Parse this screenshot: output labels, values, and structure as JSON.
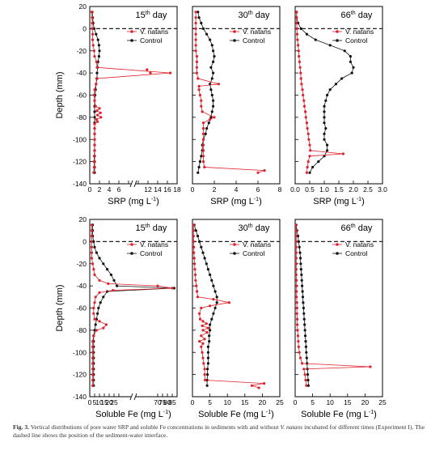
{
  "figure": {
    "y_axis_label": "Depth (mm)",
    "x_unit_suffix": "(mg L",
    "series_names": {
      "treat": "V. natans",
      "ctrl": "Control"
    },
    "colors": {
      "treat": "#e0202a",
      "ctrl": "#111111",
      "dashed": "#222222"
    }
  },
  "caption": {
    "fig_label": "Fig. 3.",
    "text_before": "Vertical distributions of pore water SRP and soluble Fe concentrations in sediments with and without",
    "species": "V. natans",
    "text_after": "incubated for different times (Experiment I). The dashed line shows the position of the sediment-water interface."
  },
  "chart_data": [
    {
      "type": "line",
      "title_num": "15",
      "title_sup": "th",
      "title_tail": " day",
      "xlabel": "SRP",
      "xlim": [
        0,
        18
      ],
      "ylim": [
        -140,
        20
      ],
      "break_at": 9,
      "xticks": [
        "0",
        "2",
        "4",
        "6",
        "",
        "",
        "12",
        "14",
        "16",
        "18"
      ],
      "xtick_values": [
        0,
        2,
        4,
        6,
        8,
        10,
        12,
        14,
        16,
        18
      ],
      "yticks": [
        "20",
        "0",
        "-20",
        "-40",
        "-60",
        "-80",
        "-100",
        "-120",
        "-140"
      ],
      "series": [
        {
          "name": "V. natans",
          "depth": [
            15,
            10,
            5,
            0,
            -5,
            -10,
            -15,
            -20,
            -25,
            -30,
            -35,
            -40,
            -45,
            -50,
            -55,
            -60,
            -65,
            -70,
            -72,
            -74,
            -76,
            -78,
            -80,
            -82,
            -84,
            -86,
            -90,
            -95,
            -100,
            -105,
            -110,
            -115,
            -120,
            -125,
            -130
          ],
          "values": [
            0.4,
            0.5,
            0.5,
            0.5,
            0.6,
            0.6,
            0.7,
            0.9,
            1.0,
            1.4,
            1.5,
            16.6,
            1.4,
            1.3,
            1.0,
            0.9,
            1.0,
            1.2,
            2.0,
            1.5,
            2.2,
            1.6,
            2.3,
            1.4,
            1.6,
            1.0,
            1.0,
            1.0,
            1.0,
            1.0,
            1.0,
            0.9,
            0.9,
            0.9,
            0.8
          ]
        },
        {
          "name": "Control",
          "depth": [
            15,
            10,
            5,
            0,
            -5,
            -10,
            -15,
            -20,
            -25,
            -30,
            -35,
            -40,
            -45,
            -50,
            -55,
            -60,
            -65,
            -70,
            -75,
            -80,
            -85,
            -90,
            -95,
            -100,
            -105,
            -110,
            -115,
            -120,
            -125,
            -130
          ],
          "values": [
            0.5,
            0.6,
            0.7,
            0.9,
            1.3,
            1.7,
            1.9,
            2.0,
            1.9,
            1.7,
            1.6,
            1.5,
            1.5,
            1.3,
            1.2,
            1.1,
            1.0,
            1.0,
            1.0,
            1.0,
            1.0,
            1.0,
            1.0,
            1.0,
            1.0,
            1.0,
            1.0,
            1.0,
            1.0,
            1.0
          ]
        }
      ],
      "extra_points": [
        [
          11.8,
          -37
        ],
        [
          12.5,
          -40
        ]
      ]
    },
    {
      "type": "line",
      "title_num": "30",
      "title_sup": "th",
      "title_tail": " day",
      "xlabel": "SRP",
      "xlim": [
        0,
        8
      ],
      "ylim": [
        -140,
        20
      ],
      "xticks": [
        "0",
        "2",
        "4",
        "6",
        "8"
      ],
      "xtick_values": [
        0,
        2,
        4,
        6,
        8
      ],
      "series": [
        {
          "name": "V. natans",
          "depth": [
            15,
            10,
            5,
            0,
            -5,
            -10,
            -15,
            -20,
            -25,
            -30,
            -35,
            -40,
            -45,
            -50,
            -52,
            -55,
            -60,
            -65,
            -70,
            -75,
            -80,
            -82,
            -85,
            -90,
            -95,
            -100,
            -105,
            -110,
            -115,
            -120,
            -125,
            -128,
            -130
          ],
          "values": [
            0.3,
            0.3,
            0.3,
            0.3,
            0.3,
            0.3,
            0.3,
            0.3,
            0.4,
            0.4,
            0.4,
            0.4,
            0.5,
            2.4,
            0.6,
            0.6,
            0.7,
            0.8,
            0.8,
            0.9,
            2.0,
            1.6,
            1.0,
            1.0,
            1.0,
            1.0,
            1.0,
            1.0,
            1.0,
            1.0,
            1.1,
            6.6,
            6.0
          ]
        },
        {
          "name": "Control",
          "depth": [
            15,
            10,
            5,
            0,
            -5,
            -10,
            -15,
            -20,
            -25,
            -30,
            -35,
            -40,
            -45,
            -50,
            -55,
            -60,
            -65,
            -70,
            -75,
            -80,
            -85,
            -90,
            -95,
            -100,
            -105,
            -110,
            -115,
            -120,
            -125,
            -130
          ],
          "values": [
            0.5,
            0.6,
            0.8,
            1.0,
            1.3,
            1.6,
            1.8,
            1.9,
            2.0,
            1.9,
            1.7,
            1.9,
            1.8,
            1.6,
            1.7,
            1.8,
            1.9,
            1.9,
            1.8,
            1.7,
            1.5,
            1.3,
            1.2,
            1.0,
            0.9,
            0.9,
            0.8,
            0.7,
            0.6,
            0.5
          ]
        }
      ]
    },
    {
      "type": "line",
      "title_num": "66",
      "title_sup": "th",
      "title_tail": " day",
      "xlabel": "SRP",
      "xlim": [
        0,
        3
      ],
      "ylim": [
        -140,
        20
      ],
      "xticks": [
        "0.0",
        "0.5",
        "1.0",
        "1.5",
        "2.0",
        "2.5",
        "3.0"
      ],
      "xtick_values": [
        0,
        0.5,
        1,
        1.5,
        2,
        2.5,
        3
      ],
      "series": [
        {
          "name": "V. natans",
          "depth": [
            15,
            10,
            5,
            0,
            -5,
            -10,
            -15,
            -20,
            -25,
            -30,
            -35,
            -40,
            -45,
            -50,
            -55,
            -60,
            -65,
            -70,
            -75,
            -80,
            -85,
            -90,
            -95,
            -100,
            -105,
            -110,
            -113,
            -115,
            -120,
            -125,
            -130
          ],
          "values": [
            0.05,
            0.05,
            0.05,
            0.06,
            0.07,
            0.08,
            0.1,
            0.12,
            0.13,
            0.15,
            0.17,
            0.19,
            0.2,
            0.22,
            0.25,
            0.27,
            0.3,
            0.32,
            0.35,
            0.37,
            0.4,
            0.42,
            0.45,
            0.47,
            0.5,
            0.52,
            1.65,
            0.5,
            0.45,
            0.42,
            0.4
          ]
        },
        {
          "name": "Control",
          "depth": [
            15,
            10,
            5,
            0,
            -5,
            -10,
            -15,
            -20,
            -25,
            -30,
            -35,
            -40,
            -45,
            -50,
            -55,
            -60,
            -65,
            -70,
            -75,
            -80,
            -85,
            -90,
            -95,
            -100,
            -105,
            -110,
            -115,
            -120,
            -125,
            -130
          ],
          "values": [
            0.05,
            0.05,
            0.1,
            0.2,
            0.4,
            0.7,
            1.2,
            1.7,
            1.9,
            1.9,
            2.0,
            1.95,
            1.6,
            1.4,
            1.2,
            1.1,
            1.05,
            1.0,
            1.0,
            1.0,
            1.0,
            1.05,
            1.0,
            1.0,
            1.1,
            1.1,
            1.0,
            0.8,
            0.6,
            0.5
          ]
        }
      ]
    },
    {
      "type": "line",
      "title_num": "15",
      "title_sup": "th",
      "title_tail": " day",
      "xlabel": "Soluble Fe",
      "xlim": [
        0,
        90
      ],
      "ylim": [
        -140,
        20
      ],
      "break_at": 45,
      "xticks": [
        "0",
        "5",
        "10",
        "15",
        "20",
        "25",
        "",
        "70",
        "75",
        "80",
        "85"
      ],
      "xtick_values": [
        0,
        5,
        10,
        15,
        20,
        25,
        30,
        70,
        75,
        80,
        85
      ],
      "yticks": [
        "20",
        "0",
        "-20",
        "-40",
        "-60",
        "-80",
        "-100",
        "-120",
        "-140"
      ],
      "series": [
        {
          "name": "V. natans",
          "depth": [
            15,
            10,
            5,
            0,
            -5,
            -10,
            -15,
            -20,
            -25,
            -30,
            -35,
            -38,
            -40,
            -42,
            -44,
            -46,
            -50,
            -55,
            -60,
            -65,
            -70,
            -72,
            -75,
            -78,
            -80,
            -85,
            -90,
            -95,
            -100,
            -105,
            -110,
            -115,
            -120,
            -125,
            -130
          ],
          "values": [
            2,
            2,
            2,
            2,
            2,
            2,
            2,
            3,
            4,
            5,
            10,
            19,
            70,
            85,
            24,
            10,
            6,
            5,
            4,
            4,
            5,
            10,
            17,
            14,
            7,
            4,
            3,
            3,
            3,
            3,
            3,
            3,
            3,
            3,
            3
          ]
        },
        {
          "name": "Control",
          "depth": [
            15,
            10,
            5,
            0,
            -5,
            -10,
            -15,
            -20,
            -25,
            -30,
            -35,
            -40,
            -42,
            -45,
            -50,
            -55,
            -60,
            -65,
            -70,
            -75,
            -80,
            -85,
            -90,
            -95,
            -100,
            -105,
            -110,
            -115,
            -120,
            -125,
            -130
          ],
          "values": [
            3,
            3,
            3,
            4,
            5,
            7,
            10,
            14,
            18,
            22,
            25,
            28,
            87,
            18,
            14,
            11,
            9,
            8,
            7,
            6,
            5,
            4,
            4,
            4,
            4,
            4,
            4,
            4,
            4,
            4,
            4
          ]
        }
      ]
    },
    {
      "type": "line",
      "title_num": "30",
      "title_sup": "th",
      "title_tail": " day",
      "xlabel": "Soluble Fe",
      "xlim": [
        0,
        25
      ],
      "ylim": [
        -140,
        20
      ],
      "xticks": [
        "0",
        "5",
        "10",
        "15",
        "20",
        "25"
      ],
      "xtick_values": [
        0,
        5,
        10,
        15,
        20,
        25
      ],
      "series": [
        {
          "name": "V. natans",
          "depth": [
            15,
            10,
            5,
            0,
            -5,
            -10,
            -15,
            -20,
            -25,
            -30,
            -35,
            -40,
            -45,
            -50,
            -52,
            -55,
            -58,
            -60,
            -65,
            -70,
            -72,
            -74,
            -76,
            -78,
            -80,
            -82,
            -85,
            -88,
            -90,
            -92,
            -95,
            -100,
            -105,
            -110,
            -115,
            -120,
            -125,
            -128,
            -130,
            -132
          ],
          "values": [
            0.3,
            0.3,
            0.3,
            0.3,
            0.4,
            0.4,
            0.5,
            0.6,
            0.7,
            0.8,
            0.9,
            1.1,
            1.3,
            1.5,
            6.0,
            10.5,
            5.0,
            2.5,
            2.0,
            2.2,
            3.0,
            4.0,
            2.8,
            4.5,
            3.0,
            4.2,
            2.5,
            3.5,
            2.0,
            3.0,
            2.5,
            2.8,
            3.0,
            3.2,
            3.5,
            3.5,
            3.6,
            20.5,
            17.0,
            19.0
          ]
        },
        {
          "name": "Control",
          "depth": [
            15,
            10,
            5,
            0,
            -5,
            -10,
            -15,
            -20,
            -25,
            -30,
            -35,
            -40,
            -45,
            -50,
            -55,
            -60,
            -65,
            -70,
            -75,
            -80,
            -85,
            -90,
            -95,
            -100,
            -105,
            -110,
            -115,
            -120,
            -125,
            -130
          ],
          "values": [
            0.5,
            1.0,
            1.5,
            2.0,
            2.5,
            3.0,
            3.5,
            4.0,
            4.5,
            5.0,
            5.5,
            6.0,
            6.5,
            7.0,
            7.0,
            6.5,
            6.0,
            5.5,
            5.0,
            5.0,
            4.8,
            4.8,
            4.5,
            4.5,
            4.5,
            4.5,
            4.3,
            4.3,
            4.2,
            4.2
          ]
        }
      ]
    },
    {
      "type": "line",
      "title_num": "66",
      "title_sup": "th",
      "title_tail": " day",
      "xlabel": "Soluble Fe",
      "xlim": [
        0,
        25
      ],
      "ylim": [
        -140,
        20
      ],
      "xticks": [
        "0",
        "5",
        "10",
        "15",
        "20",
        "25"
      ],
      "xtick_values": [
        0,
        5,
        10,
        15,
        20,
        25
      ],
      "series": [
        {
          "name": "V. natans",
          "depth": [
            15,
            10,
            5,
            0,
            -5,
            -10,
            -15,
            -20,
            -25,
            -30,
            -35,
            -40,
            -45,
            -50,
            -55,
            -60,
            -65,
            -70,
            -75,
            -80,
            -85,
            -90,
            -95,
            -100,
            -105,
            -110,
            -113,
            -115,
            -120,
            -125,
            -130
          ],
          "values": [
            0.3,
            0.3,
            0.3,
            0.3,
            0.3,
            0.3,
            0.3,
            0.3,
            0.3,
            0.3,
            0.4,
            0.4,
            0.4,
            0.4,
            0.5,
            0.5,
            0.5,
            0.6,
            0.6,
            0.7,
            0.8,
            0.9,
            1.0,
            1.2,
            1.5,
            2.0,
            21.5,
            2.5,
            2.8,
            3.0,
            3.2
          ]
        },
        {
          "name": "Control",
          "depth": [
            15,
            10,
            5,
            0,
            -5,
            -10,
            -15,
            -20,
            -25,
            -30,
            -35,
            -40,
            -45,
            -50,
            -55,
            -60,
            -65,
            -70,
            -75,
            -80,
            -85,
            -90,
            -95,
            -100,
            -105,
            -110,
            -115,
            -120,
            -125,
            -130
          ],
          "values": [
            0.3,
            0.5,
            0.8,
            1.0,
            1.2,
            1.4,
            1.5,
            1.6,
            1.7,
            1.8,
            1.9,
            2.0,
            2.1,
            2.2,
            2.3,
            2.4,
            2.5,
            2.6,
            2.7,
            2.8,
            2.9,
            3.0,
            3.1,
            3.2,
            3.3,
            3.4,
            3.5,
            3.6,
            3.7,
            3.8
          ]
        }
      ]
    }
  ]
}
